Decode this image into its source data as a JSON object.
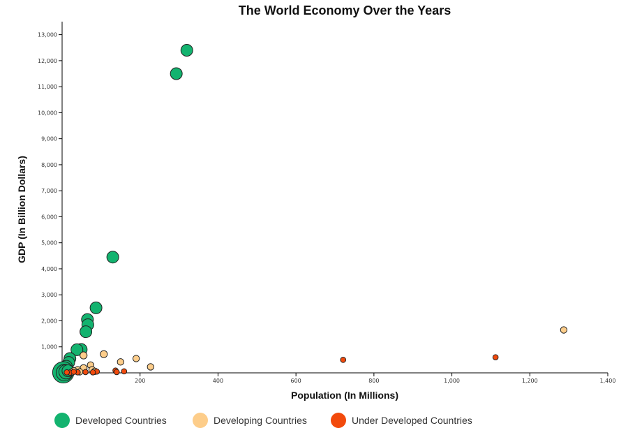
{
  "chart_data": {
    "type": "scatter",
    "title": "The World Economy Over the Years",
    "xlabel": "Population (In Millions)",
    "ylabel": "GDP (In Billion Dollars)",
    "xlim": [
      0,
      1400
    ],
    "ylim": [
      0,
      13500
    ],
    "x_ticks": [
      200,
      400,
      600,
      800,
      1000,
      1200,
      1400
    ],
    "x_tick_labels": [
      "200",
      "400",
      "600",
      "800",
      "1,000",
      "1,200",
      "1,400"
    ],
    "y_ticks": [
      1000,
      2000,
      3000,
      4000,
      5000,
      6000,
      7000,
      8000,
      9000,
      10000,
      11000,
      12000,
      13000
    ],
    "y_tick_labels": [
      "1,000",
      "2,000",
      "3,000",
      "4,000",
      "5,000",
      "6,000",
      "7,000",
      "8,000",
      "9,000",
      "10,000",
      "11,000",
      "12,000",
      "13,000"
    ],
    "grid": false,
    "legend_position": "bottom-left",
    "series": [
      {
        "name": "Developed Countries",
        "color": "#13b36f",
        "points": [
          {
            "x": 320,
            "y": 12400,
            "size": 1.0
          },
          {
            "x": 293,
            "y": 11500,
            "size": 1.0
          },
          {
            "x": 130,
            "y": 4450,
            "size": 1.0
          },
          {
            "x": 87,
            "y": 2500,
            "size": 1.0
          },
          {
            "x": 65,
            "y": 2050,
            "size": 1.0
          },
          {
            "x": 66,
            "y": 1850,
            "size": 1.0
          },
          {
            "x": 61,
            "y": 1580,
            "size": 1.0
          },
          {
            "x": 49,
            "y": 900,
            "size": 1.0
          },
          {
            "x": 38,
            "y": 890,
            "size": 1.0
          },
          {
            "x": 20,
            "y": 550,
            "size": 1.0
          },
          {
            "x": 17,
            "y": 400,
            "size": 1.0
          },
          {
            "x": 11,
            "y": 250,
            "size": 1.0
          },
          {
            "x": 5,
            "y": 150,
            "size": 1.0
          },
          {
            "x": 8,
            "y": 60,
            "size": 1.0
          },
          {
            "x": 3,
            "y": 20,
            "size": 1.8
          },
          {
            "x": 6,
            "y": 10,
            "size": 1.4
          },
          {
            "x": 10,
            "y": 40,
            "size": 1.2
          },
          {
            "x": 15,
            "y": 80,
            "size": 1.0
          }
        ]
      },
      {
        "name": "Developing Countries",
        "color": "#fdcd8a",
        "points": [
          {
            "x": 1287,
            "y": 1650,
            "size": 0.55
          },
          {
            "x": 107,
            "y": 720,
            "size": 0.6
          },
          {
            "x": 55,
            "y": 670,
            "size": 0.6
          },
          {
            "x": 190,
            "y": 550,
            "size": 0.55
          },
          {
            "x": 150,
            "y": 420,
            "size": 0.55
          },
          {
            "x": 73,
            "y": 300,
            "size": 0.55
          },
          {
            "x": 227,
            "y": 230,
            "size": 0.55
          },
          {
            "x": 55,
            "y": 180,
            "size": 0.6
          },
          {
            "x": 40,
            "y": 120,
            "size": 0.55
          },
          {
            "x": 30,
            "y": 80,
            "size": 0.55
          },
          {
            "x": 77,
            "y": 120,
            "size": 0.55
          },
          {
            "x": 45,
            "y": 40,
            "size": 0.55
          },
          {
            "x": 25,
            "y": 30,
            "size": 0.55
          },
          {
            "x": 84,
            "y": 60,
            "size": 0.55
          }
        ]
      },
      {
        "name": "Under Developed Countries",
        "color": "#f24a0c",
        "points": [
          {
            "x": 1112,
            "y": 600,
            "size": 0.45
          },
          {
            "x": 721,
            "y": 500,
            "size": 0.45
          },
          {
            "x": 137,
            "y": 90,
            "size": 0.45
          },
          {
            "x": 159,
            "y": 60,
            "size": 0.45
          },
          {
            "x": 89,
            "y": 50,
            "size": 0.45
          },
          {
            "x": 140,
            "y": 30,
            "size": 0.45
          },
          {
            "x": 79,
            "y": 20,
            "size": 0.45
          },
          {
            "x": 60,
            "y": 30,
            "size": 0.45
          },
          {
            "x": 40,
            "y": 20,
            "size": 0.45
          },
          {
            "x": 20,
            "y": 10,
            "size": 0.45
          },
          {
            "x": 30,
            "y": 40,
            "size": 0.45
          },
          {
            "x": 12,
            "y": 20,
            "size": 0.45
          }
        ]
      }
    ]
  }
}
